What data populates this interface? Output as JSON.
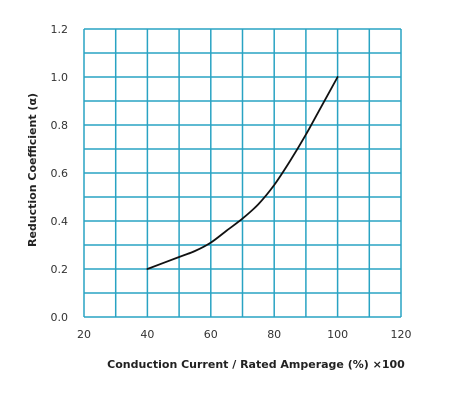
{
  "chart_data": {
    "type": "line",
    "title": "",
    "xlabel": "Conduction Current / Rated Amperage (%) ×100",
    "ylabel": "Reduction Coefficient (α)",
    "xlim": [
      20,
      120
    ],
    "ylim": [
      0,
      1.2
    ],
    "x_ticks": [
      "20",
      "40",
      "60",
      "80",
      "100",
      "120"
    ],
    "y_ticks": [
      "0.0",
      "0.2",
      "0.4",
      "0.6",
      "0.8",
      "1.0",
      "1.2"
    ],
    "grid": true,
    "grid_color": "#29a3c3",
    "line_color": "#111111",
    "series": [
      {
        "x": [
          40,
          50,
          55,
          60,
          65,
          70,
          75,
          80,
          85,
          90,
          95,
          100
        ],
        "y": [
          0.2,
          0.25,
          0.275,
          0.31,
          0.36,
          0.41,
          0.47,
          0.55,
          0.65,
          0.76,
          0.88,
          1.0
        ]
      }
    ]
  }
}
